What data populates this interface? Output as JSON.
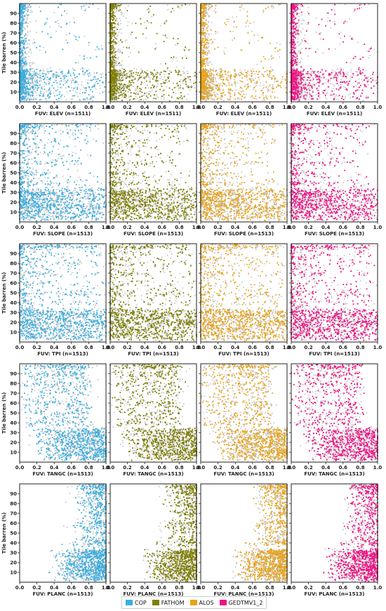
{
  "chart_data": {
    "type": "scatter",
    "title": "",
    "ylabel": "Tile barren (%)",
    "xlim": [
      0.0,
      1.0
    ],
    "ylim": [
      0,
      100
    ],
    "x_ticks": [
      "0.0",
      "0.2",
      "0.4",
      "0.6",
      "0.8",
      "1.0"
    ],
    "y_ticks": [
      "10",
      "20",
      "30",
      "40",
      "50",
      "60",
      "70",
      "80",
      "90"
    ],
    "background_series": {
      "color": "#c0c0c0",
      "description_value": "all other DEMs plotted in grey"
    },
    "series": [
      {
        "name": "COP",
        "color": "#3aaee0"
      },
      {
        "name": "FATHOM",
        "color": "#7e7e00"
      },
      {
        "name": "ALOS",
        "color": "#e8a317"
      },
      {
        "name": "GEDTMV1_2",
        "color": "#ee1283"
      }
    ],
    "rows": [
      {
        "variable": "ELEV",
        "xlabel": "FUV: ELEV  (n=1511)",
        "n": 1511,
        "x_distribution": "concentrated near 0.0-0.2 with sparse tail to 1.0"
      },
      {
        "variable": "SLOPE",
        "xlabel": "FUV: SLOPE  (n=1513)",
        "n": 1513,
        "x_distribution": "dense near 0.0-0.2, spread across 0-1 for barren < 35%"
      },
      {
        "variable": "TPI",
        "xlabel": "FUV: TPI  (n=1513)",
        "n": 1513,
        "x_distribution": "dense near 0.0-0.3, spread across 0-1 for barren < 35%"
      },
      {
        "variable": "TANGC",
        "xlabel": "FUV: TANGC  (n=1513)",
        "n": 1513,
        "x_distribution": "spread 0.2-1.0, dense near 1.0 for barren < 35%"
      },
      {
        "variable": "PLANC",
        "xlabel": "FUV: PLANC  (n=1513)",
        "n": 1513,
        "x_distribution": "concentrated 0.6-1.0, densest near 1.0"
      }
    ]
  },
  "legend": {
    "items": [
      {
        "label": "COP",
        "color": "#3aaee0"
      },
      {
        "label": "FATHOM",
        "color": "#7e7e00"
      },
      {
        "label": "ALOS",
        "color": "#e8a317"
      },
      {
        "label": "GEDTMV1_2",
        "color": "#ee1283"
      }
    ]
  }
}
